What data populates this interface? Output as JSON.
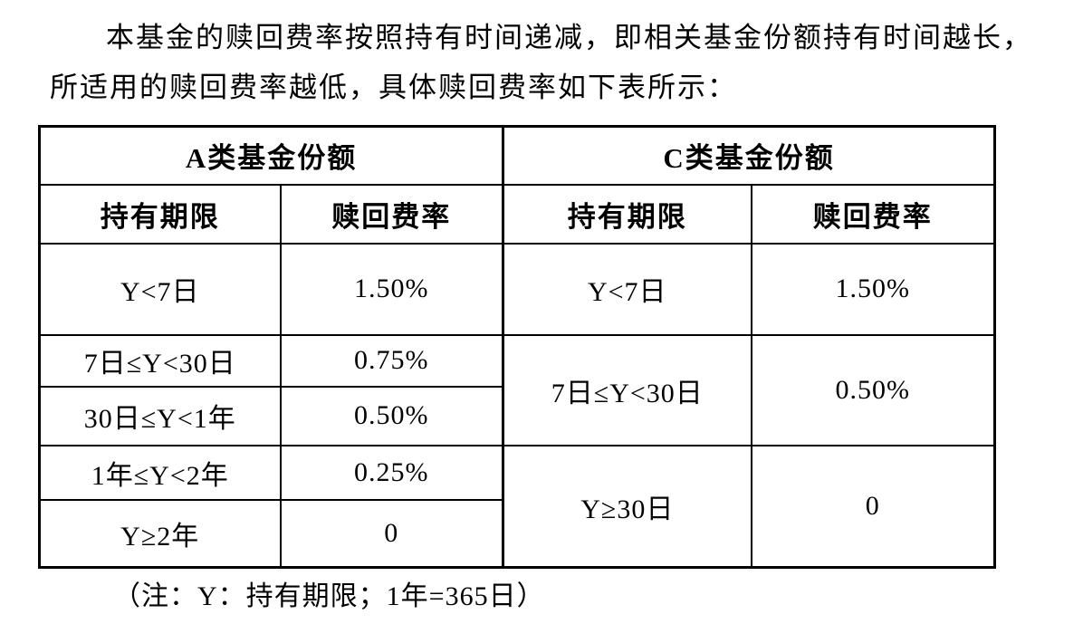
{
  "page": {
    "background_color": "#ffffff",
    "text_color": "#000000"
  },
  "paragraph": {
    "line1": "本基金的赎回费率按照持有时间递减，即相关基金份额持有时间越长，",
    "line2": "所适用的赎回费率越低，具体赎回费率如下表所示："
  },
  "table": {
    "a_section": {
      "title": "A类基金份额",
      "headers": [
        "持有期限",
        "赎回费率"
      ],
      "rows": [
        {
          "period": "Y<7日",
          "rate": "1.50%"
        },
        {
          "period": "7日≤Y<30日",
          "rate": "0.75%"
        },
        {
          "period": "30日≤Y<1年",
          "rate": "0.50%"
        },
        {
          "period": "1年≤Y<2年",
          "rate": "0.25%"
        },
        {
          "period": "Y≥2年",
          "rate": "0"
        }
      ]
    },
    "c_section": {
      "title": "C类基金份额",
      "headers": [
        "持有期限",
        "赎回费率"
      ],
      "rows": [
        {
          "period": "Y<7日",
          "rate": "1.50%"
        },
        {
          "period": "7日≤Y<30日",
          "rate": "0.50%"
        },
        {
          "period": "Y≥30日",
          "rate": "0"
        }
      ]
    }
  },
  "note": "（注：Y：持有期限；1年=365日）"
}
